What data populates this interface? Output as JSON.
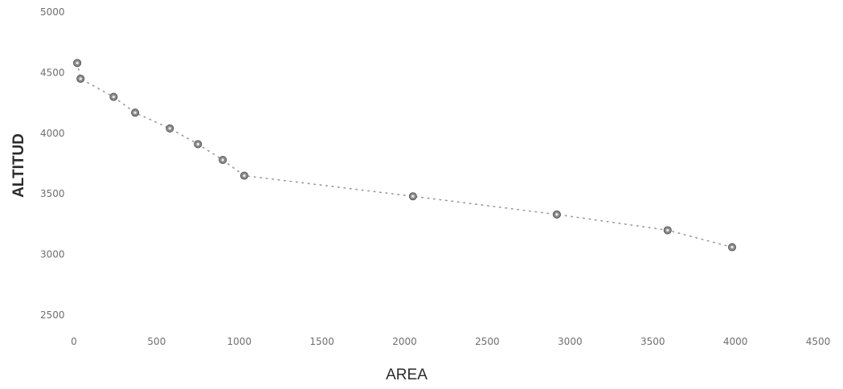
{
  "chart_data": {
    "type": "scatter",
    "xlabel": "AREA",
    "ylabel": "ALTITUD",
    "xlim": [
      0,
      4500
    ],
    "ylim": [
      2500,
      5000
    ],
    "x_ticks": [
      0,
      500,
      1000,
      1500,
      2000,
      2500,
      3000,
      3500,
      4000,
      4500
    ],
    "y_ticks": [
      2500,
      3000,
      3500,
      4000,
      4500,
      5000
    ],
    "grid": false,
    "legend": "none",
    "trendline": "dotted",
    "colors": {
      "marker": "#8a8a8a",
      "trendline": "#9a9a9a"
    },
    "series": [
      {
        "x": [
          20,
          40,
          240,
          370,
          580,
          750,
          900,
          1030,
          2050,
          2920,
          3590,
          3980
        ],
        "y": [
          4580,
          4450,
          4300,
          4170,
          4040,
          3910,
          3780,
          3650,
          3480,
          3330,
          3200,
          3060
        ]
      }
    ]
  }
}
